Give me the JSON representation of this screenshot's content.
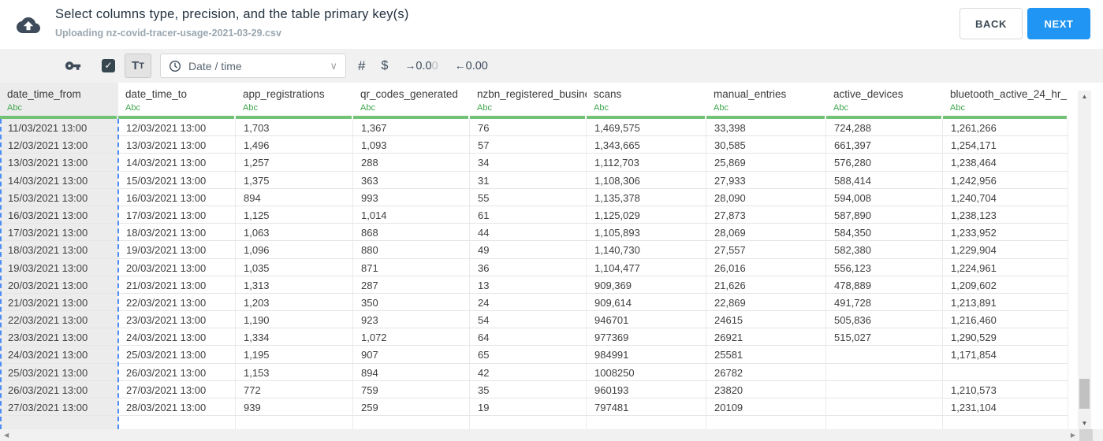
{
  "header": {
    "title": "Select columns type, precision, and the table primary key(s)",
    "subtitle": "Uploading nz-covid-tracer-usage-2021-03-29.csv",
    "back_label": "BACK",
    "next_label": "NEXT"
  },
  "toolbar": {
    "checkbox_checked": true,
    "text_type_label_big": "T",
    "text_type_label_small": "T",
    "type_dropdown_value": "Date / time",
    "number_type_glyph": "#",
    "currency_type_glyph": "$",
    "increase_decimals_main": "0.0",
    "increase_decimals_faded": "0",
    "decrease_decimals_value": "0.00",
    "icon_names": [
      "primary-key-icon",
      "checkbox-checked-icon",
      "text-type-icon",
      "clock-icon",
      "chevron-down-icon",
      "number-type-icon",
      "currency-type-icon",
      "arrow-right-icon",
      "arrow-left-icon"
    ]
  },
  "table": {
    "columns": [
      {
        "name": "date_time_from",
        "type_label": "Abc",
        "selected": true
      },
      {
        "name": "date_time_to",
        "type_label": "Abc",
        "selected": false
      },
      {
        "name": "app_registrations",
        "type_label": "Abc",
        "selected": false
      },
      {
        "name": "qr_codes_generated",
        "type_label": "Abc",
        "selected": false
      },
      {
        "name": "nzbn_registered_busine",
        "type_label": "Abc",
        "selected": false
      },
      {
        "name": "scans",
        "type_label": "Abc",
        "selected": false
      },
      {
        "name": "manual_entries",
        "type_label": "Abc",
        "selected": false
      },
      {
        "name": "active_devices",
        "type_label": "Abc",
        "selected": false
      },
      {
        "name": "bluetooth_active_24_hr_",
        "type_label": "Abc",
        "selected": false
      }
    ],
    "rows": [
      [
        "11/03/2021 13:00",
        "12/03/2021 13:00",
        "1,703",
        "1,367",
        "76",
        "1,469,575",
        "33,398",
        "724,288",
        "1,261,266"
      ],
      [
        "12/03/2021 13:00",
        "13/03/2021 13:00",
        "1,496",
        "1,093",
        "57",
        "1,343,665",
        "30,585",
        "661,397",
        "1,254,171"
      ],
      [
        "13/03/2021 13:00",
        "14/03/2021 13:00",
        "1,257",
        "288",
        "34",
        "1,112,703",
        "25,869",
        "576,280",
        "1,238,464"
      ],
      [
        "14/03/2021 13:00",
        "15/03/2021 13:00",
        "1,375",
        "363",
        "31",
        "1,108,306",
        "27,933",
        "588,414",
        "1,242,956"
      ],
      [
        "15/03/2021 13:00",
        "16/03/2021 13:00",
        "894",
        "993",
        "55",
        "1,135,378",
        "28,090",
        "594,008",
        "1,240,704"
      ],
      [
        "16/03/2021 13:00",
        "17/03/2021 13:00",
        "1,125",
        "1,014",
        "61",
        "1,125,029",
        "27,873",
        "587,890",
        "1,238,123"
      ],
      [
        "17/03/2021 13:00",
        "18/03/2021 13:00",
        "1,063",
        "868",
        "44",
        "1,105,893",
        "28,069",
        "584,350",
        "1,233,952"
      ],
      [
        "18/03/2021 13:00",
        "19/03/2021 13:00",
        "1,096",
        "880",
        "49",
        "1,140,730",
        "27,557",
        "582,380",
        "1,229,904"
      ],
      [
        "19/03/2021 13:00",
        "20/03/2021 13:00",
        "1,035",
        "871",
        "36",
        "1,104,477",
        "26,016",
        "556,123",
        "1,224,961"
      ],
      [
        "20/03/2021 13:00",
        "21/03/2021 13:00",
        "1,313",
        "287",
        "13",
        "909,369",
        "21,626",
        "478,889",
        "1,209,602"
      ],
      [
        "21/03/2021 13:00",
        "22/03/2021 13:00",
        "1,203",
        "350",
        "24",
        "909,614",
        "22,869",
        "491,728",
        "1,213,891"
      ],
      [
        "22/03/2021 13:00",
        "23/03/2021 13:00",
        "1,190",
        "923",
        "54",
        "946701",
        "24615",
        "505,836",
        "1,216,460"
      ],
      [
        "23/03/2021 13:00",
        "24/03/2021 13:00",
        "1,334",
        "1,072",
        "64",
        "977369",
        "26921",
        "515,027",
        "1,290,529"
      ],
      [
        "24/03/2021 13:00",
        "25/03/2021 13:00",
        "1,195",
        "907",
        "65",
        "984991",
        "25581",
        "",
        "1,171,854"
      ],
      [
        "25/03/2021 13:00",
        "26/03/2021 13:00",
        "1,153",
        "894",
        "42",
        "1008250",
        "26782",
        "",
        ""
      ],
      [
        "26/03/2021 13:00",
        "27/03/2021 13:00",
        "772",
        "759",
        "35",
        "960193",
        "23820",
        "",
        "1,210,573"
      ],
      [
        "27/03/2021 13:00",
        "28/03/2021 13:00",
        "939",
        "259",
        "19",
        "797481",
        "20109",
        "",
        "1,231,104"
      ]
    ]
  },
  "colors": {
    "accent_blue": "#2095f3",
    "selection_dash_blue": "#4c8df5",
    "type_label_green": "#3da64b",
    "header_underline_green": "#72c376",
    "toolbar_bg": "#f1f1f1",
    "selected_column_bg": "#ececec",
    "icon_dark": "#3e4b5b"
  }
}
